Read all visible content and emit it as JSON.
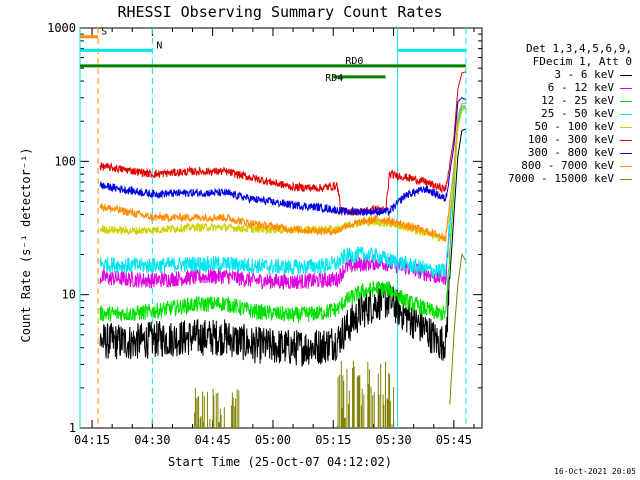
{
  "chart_data": {
    "type": "line",
    "title": "RHESSI Observing Summary Count Rates",
    "xlabel": "Start Time (25-Oct-07 04:12:02)",
    "ylabel": "Count Rate (s⁻¹ detector⁻¹)",
    "y_scale": "log",
    "ylim": [
      1,
      1000
    ],
    "xlim_minutes": [
      252,
      352
    ],
    "x_ticks": [
      {
        "label": "04:15",
        "minute": 255
      },
      {
        "label": "04:30",
        "minute": 270
      },
      {
        "label": "04:45",
        "minute": 285
      },
      {
        "label": "05:00",
        "minute": 300
      },
      {
        "label": "05:15",
        "minute": 315
      },
      {
        "label": "05:30",
        "minute": 330
      },
      {
        "label": "05:45",
        "minute": 345
      }
    ],
    "y_ticks": [
      {
        "label": "1",
        "value": 1
      },
      {
        "label": "10",
        "value": 10
      },
      {
        "label": "100",
        "value": 100
      },
      {
        "label": "1000",
        "value": 1000
      }
    ],
    "legend_header": [
      "Det 1,3,4,5,6,9,",
      "FDecim 1, Att 0"
    ],
    "series": [
      {
        "name": "3 - 6 keV",
        "color": "#000000",
        "points": [
          [
            257,
            4.5
          ],
          [
            265,
            4.4
          ],
          [
            270,
            4.6
          ],
          [
            280,
            4.8
          ],
          [
            288,
            4.8
          ],
          [
            295,
            4.2
          ],
          [
            305,
            4.0
          ],
          [
            312,
            4.1
          ],
          [
            316,
            4.5
          ],
          [
            318,
            5.5
          ],
          [
            322,
            7.5
          ],
          [
            326,
            8.8
          ],
          [
            329,
            9.0
          ],
          [
            333,
            7.0
          ],
          [
            338,
            5.5
          ],
          [
            341,
            4.4
          ],
          [
            343,
            4.4
          ],
          [
            345,
            40
          ],
          [
            346,
            110
          ],
          [
            347,
            170
          ],
          [
            348,
            175
          ]
        ]
      },
      {
        "name": "6 - 12 keV",
        "color": "#e000e0",
        "points": [
          [
            257,
            13.5
          ],
          [
            265,
            13.0
          ],
          [
            270,
            12.8
          ],
          [
            280,
            13.5
          ],
          [
            288,
            13.8
          ],
          [
            295,
            12.8
          ],
          [
            305,
            12.5
          ],
          [
            312,
            12.8
          ],
          [
            316,
            13.0
          ],
          [
            318,
            16
          ],
          [
            322,
            17
          ],
          [
            326,
            17.5
          ],
          [
            329,
            17
          ],
          [
            333,
            16
          ],
          [
            338,
            14.5
          ],
          [
            341,
            13.5
          ],
          [
            343,
            13.5
          ],
          [
            345,
            80
          ],
          [
            346,
            200
          ],
          [
            347,
            260
          ],
          [
            348,
            255
          ]
        ]
      },
      {
        "name": "12 - 25 keV",
        "color": "#00e000",
        "points": [
          [
            257,
            7.2
          ],
          [
            265,
            7.2
          ],
          [
            270,
            7.5
          ],
          [
            280,
            8.4
          ],
          [
            288,
            8.6
          ],
          [
            295,
            7.5
          ],
          [
            305,
            7.0
          ],
          [
            312,
            7.3
          ],
          [
            316,
            7.8
          ],
          [
            318,
            9.0
          ],
          [
            322,
            10.5
          ],
          [
            326,
            11.2
          ],
          [
            329,
            11.0
          ],
          [
            333,
            9.0
          ],
          [
            338,
            7.8
          ],
          [
            341,
            7.2
          ],
          [
            343,
            7.2
          ],
          [
            345,
            60
          ],
          [
            346,
            190
          ],
          [
            347,
            250
          ],
          [
            348,
            250
          ]
        ]
      },
      {
        "name": "25 - 50 keV",
        "color": "#00e5ee",
        "points": [
          [
            257,
            17
          ],
          [
            265,
            16.5
          ],
          [
            270,
            16.5
          ],
          [
            280,
            17
          ],
          [
            288,
            17
          ],
          [
            295,
            16.5
          ],
          [
            305,
            16
          ],
          [
            312,
            16.5
          ],
          [
            316,
            17
          ],
          [
            318,
            19.5
          ],
          [
            322,
            20
          ],
          [
            326,
            19.5
          ],
          [
            329,
            18
          ],
          [
            333,
            17
          ],
          [
            338,
            15.5
          ],
          [
            341,
            15
          ],
          [
            343,
            15
          ],
          [
            345,
            80
          ],
          [
            346,
            200
          ],
          [
            347,
            260
          ],
          [
            348,
            260
          ]
        ]
      },
      {
        "name": "50 - 100 keV",
        "color": "#d0d000",
        "points": [
          [
            257,
            31
          ],
          [
            265,
            30
          ],
          [
            270,
            30.5
          ],
          [
            280,
            32
          ],
          [
            288,
            32
          ],
          [
            295,
            31
          ],
          [
            305,
            30.5
          ],
          [
            312,
            31
          ],
          [
            316,
            31
          ],
          [
            318,
            33
          ],
          [
            322,
            35
          ],
          [
            326,
            35
          ],
          [
            329,
            34
          ],
          [
            333,
            32
          ],
          [
            338,
            29
          ],
          [
            341,
            27
          ],
          [
            343,
            26
          ],
          [
            345,
            70
          ],
          [
            346,
            180
          ],
          [
            347,
            240
          ],
          [
            348,
            250
          ]
        ]
      },
      {
        "name": "100 - 300 keV",
        "color": "#e00000",
        "points": [
          [
            257,
            92
          ],
          [
            265,
            85
          ],
          [
            270,
            80
          ],
          [
            280,
            84
          ],
          [
            288,
            84
          ],
          [
            295,
            75
          ],
          [
            305,
            64
          ],
          [
            312,
            63
          ],
          [
            316,
            66
          ],
          [
            317,
            42
          ],
          [
            322,
            42
          ],
          [
            326,
            44
          ],
          [
            328,
            42
          ],
          [
            329,
            80
          ],
          [
            333,
            76
          ],
          [
            338,
            70
          ],
          [
            341,
            64
          ],
          [
            343,
            62
          ],
          [
            345,
            150
          ],
          [
            346,
            350
          ],
          [
            347,
            460
          ],
          [
            348,
            470
          ]
        ]
      },
      {
        "name": "300 - 800 keV",
        "color": "#0000e0",
        "points": [
          [
            257,
            66
          ],
          [
            265,
            60
          ],
          [
            270,
            57
          ],
          [
            280,
            58
          ],
          [
            288,
            58
          ],
          [
            295,
            52
          ],
          [
            305,
            47
          ],
          [
            312,
            45
          ],
          [
            316,
            43
          ],
          [
            318,
            42
          ],
          [
            322,
            42
          ],
          [
            326,
            42
          ],
          [
            329,
            42
          ],
          [
            333,
            56
          ],
          [
            338,
            62
          ],
          [
            341,
            56
          ],
          [
            343,
            52
          ],
          [
            345,
            130
          ],
          [
            346,
            280
          ],
          [
            347,
            300
          ],
          [
            348,
            290
          ]
        ]
      },
      {
        "name": "800 - 7000 keV",
        "color": "#ff8c00",
        "points": [
          [
            257,
            46
          ],
          [
            265,
            41
          ],
          [
            270,
            38
          ],
          [
            280,
            38
          ],
          [
            288,
            38
          ],
          [
            295,
            34
          ],
          [
            305,
            31
          ],
          [
            312,
            30
          ],
          [
            316,
            30
          ],
          [
            318,
            33
          ],
          [
            322,
            35
          ],
          [
            326,
            37
          ],
          [
            329,
            36
          ],
          [
            333,
            33
          ],
          [
            338,
            30
          ],
          [
            341,
            28
          ],
          [
            343,
            27
          ],
          [
            345,
            90
          ],
          [
            346,
            220
          ],
          [
            347,
            270
          ],
          [
            348,
            270
          ]
        ]
      },
      {
        "name": "7000 - 15000 keV",
        "color": "#808000",
        "points": [
          [
            344,
            1.5
          ],
          [
            345,
            5
          ],
          [
            346,
            12
          ],
          [
            347,
            20
          ],
          [
            348,
            18
          ]
        ]
      }
    ],
    "bursts_7000_15000": [
      {
        "from": 280.5,
        "to": 291.5,
        "max": 2.0
      },
      {
        "from": 316,
        "to": 330,
        "max": 3.2
      }
    ],
    "annotations": [
      {
        "label": "S",
        "color": "#ff8c00",
        "from": 252,
        "to": 256.5,
        "y": 860,
        "row": 1
      },
      {
        "label": "N",
        "color": "#00e5ee",
        "from": 252,
        "to": 270,
        "y": 680,
        "row": 2
      },
      {
        "label": "N",
        "color": "#00e5ee",
        "from": 331,
        "to": 348,
        "y": 680,
        "row": 2
      },
      {
        "label": "RD0",
        "color": "#008000",
        "from": 252,
        "to": 348,
        "y": 520,
        "row": 3
      },
      {
        "label": "RD4",
        "color": "#008000",
        "from": 315,
        "to": 328,
        "y": 430,
        "row": 4
      }
    ],
    "vertical_markers": [
      {
        "minute": 252,
        "color": "#00e5ee",
        "dashed": false
      },
      {
        "minute": 256.5,
        "color": "#ff8c00",
        "dashed": true
      },
      {
        "minute": 270,
        "color": "#00e5ee",
        "dashed": true
      },
      {
        "minute": 331,
        "color": "#00e5ee",
        "dashed": false
      },
      {
        "minute": 348,
        "color": "#00e5ee",
        "dashed": true
      }
    ],
    "timestamp": "16-Oct-2021 20:05"
  }
}
